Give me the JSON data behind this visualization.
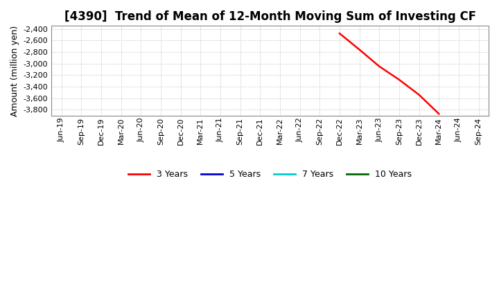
{
  "title": "[4390]  Trend of Mean of 12-Month Moving Sum of Investing CF",
  "ylabel": "Amount (million yen)",
  "ylim": [
    -3900,
    -2350
  ],
  "yticks": [
    -3800,
    -3600,
    -3400,
    -3200,
    -3000,
    -2800,
    -2600,
    -2400
  ],
  "bg_color": "#ffffff",
  "plot_bg_color": "#ffffff",
  "grid_color": "#bbbbbb",
  "x_labels": [
    "Jun-19",
    "Sep-19",
    "Dec-19",
    "Mar-20",
    "Jun-20",
    "Sep-20",
    "Dec-20",
    "Mar-21",
    "Jun-21",
    "Sep-21",
    "Dec-21",
    "Mar-22",
    "Jun-22",
    "Sep-22",
    "Dec-22",
    "Mar-23",
    "Jun-23",
    "Sep-23",
    "Dec-23",
    "Mar-24",
    "Jun-24",
    "Sep-24"
  ],
  "series": [
    {
      "name": "3 Years",
      "color": "#ff0000",
      "linewidth": 1.8,
      "x_indices": [
        14,
        15,
        16,
        17,
        18,
        19
      ],
      "y_values": [
        -2480,
        -2760,
        -3050,
        -3280,
        -3540,
        -3870
      ]
    },
    {
      "name": "5 Years",
      "color": "#0000cc",
      "linewidth": 1.8,
      "x_indices": [],
      "y_values": []
    },
    {
      "name": "7 Years",
      "color": "#00cccc",
      "linewidth": 1.8,
      "x_indices": [],
      "y_values": []
    },
    {
      "name": "10 Years",
      "color": "#006600",
      "linewidth": 1.8,
      "x_indices": [],
      "y_values": []
    }
  ],
  "title_fontsize": 12,
  "axis_label_fontsize": 9,
  "tick_fontsize": 8,
  "legend_fontsize": 9
}
